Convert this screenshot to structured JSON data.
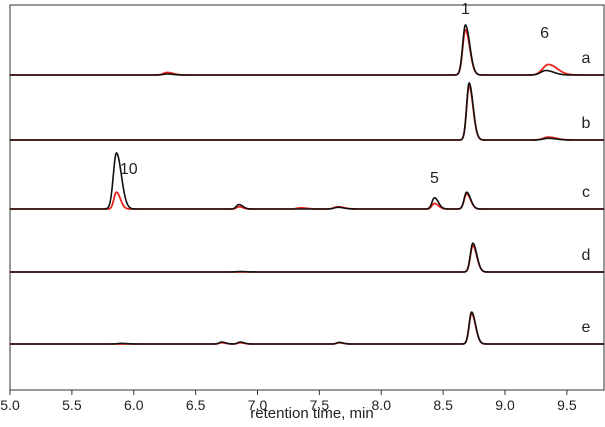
{
  "chart_data": {
    "type": "line",
    "title": "",
    "xlabel": "retention time, min",
    "ylabel": "",
    "xlim": [
      5.0,
      9.8
    ],
    "x_ticks": [
      "5.0",
      "5.5",
      "6.0",
      "6.5",
      "7.0",
      "7.5",
      "8.0",
      "8.5",
      "9.0",
      "9.5"
    ],
    "grid": false,
    "colors": {
      "black_series": "#111111",
      "red_series": "#e8251c",
      "axis": "#333333"
    },
    "traces": [
      {
        "label": "a",
        "series": [
          {
            "name": "black",
            "peaks": [
              [
                8.68,
                1.0,
                0.022
              ],
              [
                9.33,
                0.09,
                0.04
              ],
              [
                6.27,
                0.02,
                0.03
              ]
            ]
          },
          {
            "name": "red",
            "peaks": [
              [
                8.68,
                0.9,
                0.022
              ],
              [
                9.35,
                0.21,
                0.045
              ],
              [
                6.27,
                0.05,
                0.03
              ]
            ]
          }
        ]
      },
      {
        "label": "b",
        "series": [
          {
            "name": "black",
            "peaks": [
              [
                8.71,
                1.0,
                0.02
              ],
              [
                9.35,
                0.03,
                0.04
              ]
            ]
          },
          {
            "name": "red",
            "peaks": [
              [
                8.71,
                0.95,
                0.02
              ],
              [
                9.35,
                0.05,
                0.04
              ]
            ]
          }
        ]
      },
      {
        "label": "c",
        "series": [
          {
            "name": "black",
            "peaks": [
              [
                5.86,
                1.0,
                0.025
              ],
              [
                6.85,
                0.08,
                0.02
              ],
              [
                8.43,
                0.2,
                0.02
              ],
              [
                8.69,
                0.3,
                0.02
              ],
              [
                7.65,
                0.03,
                0.03
              ]
            ]
          },
          {
            "name": "red",
            "peaks": [
              [
                5.86,
                0.3,
                0.02
              ],
              [
                6.85,
                0.04,
                0.02
              ],
              [
                8.43,
                0.1,
                0.02
              ],
              [
                8.69,
                0.27,
                0.02
              ],
              [
                7.65,
                0.04,
                0.03
              ],
              [
                7.35,
                0.02,
                0.03
              ]
            ]
          }
        ]
      },
      {
        "label": "d",
        "series": [
          {
            "name": "black",
            "peaks": [
              [
                8.74,
                0.6,
                0.02
              ],
              [
                6.86,
                0.01,
                0.03
              ]
            ]
          },
          {
            "name": "red",
            "peaks": [
              [
                8.74,
                0.55,
                0.02
              ]
            ]
          }
        ]
      },
      {
        "label": "e",
        "series": [
          {
            "name": "black",
            "peaks": [
              [
                8.73,
                1.0,
                0.02
              ],
              [
                6.71,
                0.06,
                0.02
              ],
              [
                6.86,
                0.06,
                0.02
              ],
              [
                7.66,
                0.05,
                0.02
              ],
              [
                5.9,
                0.02,
                0.03
              ]
            ]
          },
          {
            "name": "red",
            "peaks": [
              [
                8.73,
                0.95,
                0.02
              ],
              [
                6.71,
                0.04,
                0.02
              ],
              [
                6.86,
                0.04,
                0.02
              ],
              [
                7.66,
                0.04,
                0.02
              ]
            ]
          }
        ]
      }
    ],
    "peak_labels": [
      {
        "text": "1",
        "trace": "a",
        "x": 8.68
      },
      {
        "text": "6",
        "trace": "a",
        "x": 9.32
      },
      {
        "text": "10",
        "trace": "c",
        "x": 5.96
      },
      {
        "text": "5",
        "trace": "c",
        "x": 8.43
      }
    ]
  }
}
